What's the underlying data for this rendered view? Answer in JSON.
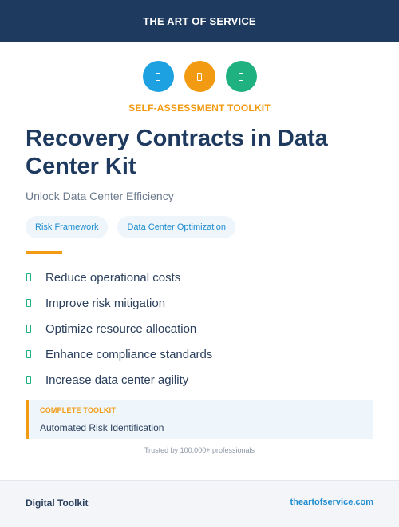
{
  "header": {
    "brand": "THE ART OF SERVICE"
  },
  "icons": [
    {
      "name": "category-icon-1",
      "color": "#1ea1e0"
    },
    {
      "name": "category-icon-2",
      "color": "#f29b12"
    },
    {
      "name": "category-icon-3",
      "color": "#1fb17f"
    }
  ],
  "kicker": "SELF-ASSESSMENT TOOLKIT",
  "title": "Recovery Contracts in Data Center Kit",
  "subtitle": "Unlock Data Center Efficiency",
  "tags": [
    "Risk Framework",
    "Data Center Optimization"
  ],
  "benefits": [
    "Reduce operational costs",
    "Improve risk mitigation",
    "Optimize resource allocation",
    "Enhance compliance standards",
    "Increase data center agility"
  ],
  "callout": {
    "label": "COMPLETE TOOLKIT",
    "value": "Automated Risk Identification"
  },
  "trusted": "Trusted by 100,000+ professionals",
  "footer": {
    "left": "Digital Toolkit",
    "right": "theartofservice.com"
  },
  "colors": {
    "navy": "#1e3a5f",
    "accent": "#f29b12",
    "blue": "#1ea1e0",
    "green": "#1fb17f"
  }
}
